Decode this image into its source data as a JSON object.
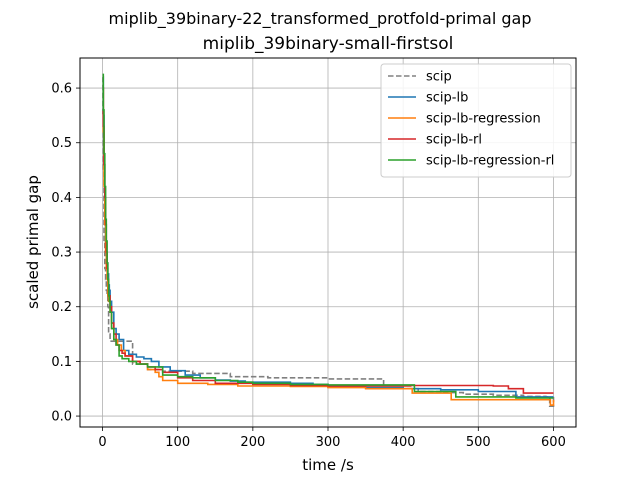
{
  "chart_data": {
    "type": "line",
    "title": "miplib_39binary-22_transformed_protfold-primal gap",
    "subtitle": "miplib_39binary-small-firstsol",
    "xlabel": "time /s",
    "ylabel": "scaled primal gap",
    "xlim": [
      -30,
      630
    ],
    "ylim": [
      -0.02,
      0.655
    ],
    "xticks": [
      0,
      100,
      200,
      300,
      400,
      500,
      600
    ],
    "yticks": [
      0.0,
      0.1,
      0.2,
      0.3,
      0.4,
      0.5,
      0.6
    ],
    "grid": true,
    "legend_position": "top-right",
    "series": [
      {
        "name": "scip",
        "color": "#808080",
        "dashed": true,
        "x": [
          0,
          0.5,
          1,
          2,
          3,
          4,
          5,
          6,
          7,
          8,
          10,
          20,
          40,
          60,
          80,
          120,
          170,
          220,
          260,
          300,
          330,
          374,
          374,
          400,
          420,
          450,
          480,
          520,
          560,
          590,
          595,
          600
        ],
        "y": [
          0.62,
          0.55,
          0.45,
          0.32,
          0.27,
          0.25,
          0.23,
          0.22,
          0.2,
          0.15,
          0.137,
          0.137,
          0.095,
          0.085,
          0.082,
          0.078,
          0.072,
          0.07,
          0.07,
          0.068,
          0.068,
          0.066,
          0.05,
          0.05,
          0.045,
          0.043,
          0.04,
          0.038,
          0.036,
          0.035,
          0.018,
          0.035
        ]
      },
      {
        "name": "scip-lb",
        "color": "#1f77b4",
        "dashed": false,
        "x": [
          0,
          1,
          2,
          3,
          4,
          5,
          6,
          7,
          8,
          9,
          10,
          12,
          15,
          18,
          22,
          28,
          35,
          45,
          55,
          65,
          75,
          90,
          110,
          130,
          150,
          170,
          190,
          210,
          250,
          280,
          300,
          350,
          400,
          450,
          500,
          550,
          600
        ],
        "y": [
          0.62,
          0.55,
          0.46,
          0.38,
          0.32,
          0.3,
          0.28,
          0.26,
          0.24,
          0.23,
          0.21,
          0.19,
          0.16,
          0.15,
          0.14,
          0.12,
          0.113,
          0.108,
          0.105,
          0.1,
          0.09,
          0.083,
          0.075,
          0.07,
          0.066,
          0.064,
          0.062,
          0.062,
          0.06,
          0.058,
          0.053,
          0.052,
          0.05,
          0.048,
          0.045,
          0.035,
          0.035
        ]
      },
      {
        "name": "scip-lb-regression",
        "color": "#ff7f0e",
        "dashed": false,
        "x": [
          0,
          1,
          2,
          3,
          4,
          5,
          6,
          7,
          8,
          10,
          12,
          15,
          20,
          25,
          30,
          40,
          50,
          60,
          70,
          75,
          80,
          100,
          140,
          180,
          250,
          300,
          350,
          412,
          412,
          440,
          464,
          464,
          500,
          550,
          590,
          596,
          600
        ],
        "y": [
          0.6,
          0.52,
          0.42,
          0.35,
          0.3,
          0.27,
          0.25,
          0.22,
          0.21,
          0.19,
          0.16,
          0.14,
          0.13,
          0.12,
          0.11,
          0.1,
          0.095,
          0.085,
          0.08,
          0.072,
          0.065,
          0.06,
          0.058,
          0.055,
          0.054,
          0.052,
          0.05,
          0.05,
          0.042,
          0.042,
          0.042,
          0.03,
          0.03,
          0.03,
          0.03,
          0.02,
          0.03
        ]
      },
      {
        "name": "scip-lb-rl",
        "color": "#d62728",
        "dashed": false,
        "x": [
          0,
          1,
          2,
          3,
          4,
          5,
          6,
          7,
          8,
          10,
          12,
          15,
          18,
          22,
          26,
          30,
          40,
          50,
          60,
          70,
          80,
          100,
          120,
          150,
          200,
          250,
          300,
          350,
          410,
          410,
          450,
          500,
          520,
          540,
          560,
          560,
          600
        ],
        "y": [
          0.6,
          0.53,
          0.46,
          0.4,
          0.35,
          0.3,
          0.27,
          0.25,
          0.22,
          0.2,
          0.17,
          0.15,
          0.13,
          0.12,
          0.115,
          0.11,
          0.1,
          0.095,
          0.09,
          0.085,
          0.08,
          0.07,
          0.065,
          0.06,
          0.058,
          0.056,
          0.055,
          0.055,
          0.055,
          0.056,
          0.056,
          0.056,
          0.055,
          0.05,
          0.048,
          0.042,
          0.042
        ]
      },
      {
        "name": "scip-lb-regression-rl",
        "color": "#2ca02c",
        "dashed": false,
        "x": [
          0,
          1,
          2,
          3,
          4,
          5,
          6,
          7,
          8,
          9,
          10,
          12,
          15,
          18,
          22,
          26,
          30,
          35,
          45,
          60,
          80,
          100,
          120,
          150,
          180,
          200,
          250,
          300,
          350,
          410,
          415,
          450,
          470,
          500,
          550,
          600
        ],
        "y": [
          0.625,
          0.56,
          0.48,
          0.42,
          0.36,
          0.32,
          0.28,
          0.25,
          0.22,
          0.21,
          0.19,
          0.16,
          0.14,
          0.13,
          0.11,
          0.105,
          0.105,
          0.1,
          0.095,
          0.09,
          0.075,
          0.072,
          0.07,
          0.065,
          0.062,
          0.06,
          0.058,
          0.057,
          0.057,
          0.057,
          0.045,
          0.045,
          0.035,
          0.035,
          0.033,
          0.033
        ]
      }
    ]
  }
}
